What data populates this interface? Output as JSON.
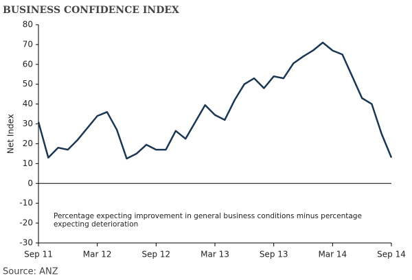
{
  "chart_data": {
    "type": "line",
    "title": "BUSINESS CONFIDENCE INDEX",
    "ylabel": "Net Index",
    "annotation": [
      "Percentage expecting improvement in general business conditions minus percentage",
      "expecting deterioration"
    ],
    "source": "Source: ANZ",
    "categories": [
      "Sep 11",
      null,
      null,
      null,
      null,
      null,
      "Mar 12",
      null,
      null,
      null,
      null,
      null,
      "Sep 12",
      null,
      null,
      null,
      null,
      null,
      "Mar 13",
      null,
      null,
      null,
      null,
      null,
      "Sep 13",
      null,
      null,
      null,
      null,
      null,
      "Mar 14",
      null,
      null,
      null,
      null,
      null,
      "Sep 14"
    ],
    "series": [
      {
        "name": "Net Index",
        "color": "#1b3652",
        "values": [
          31,
          13,
          18,
          17,
          22,
          28,
          34,
          36,
          27,
          12.5,
          15,
          19.5,
          17,
          17,
          26.5,
          22.5,
          31,
          39.5,
          34.5,
          32,
          42,
          50,
          53,
          48,
          54,
          53,
          60.5,
          64,
          67,
          71,
          67,
          65,
          54,
          43,
          40,
          25,
          13
        ]
      }
    ],
    "ylim": [
      -30,
      80
    ],
    "yticks": [
      -30,
      -20,
      -10,
      0,
      10,
      20,
      30,
      40,
      50,
      60,
      70,
      80
    ],
    "grid": false
  }
}
